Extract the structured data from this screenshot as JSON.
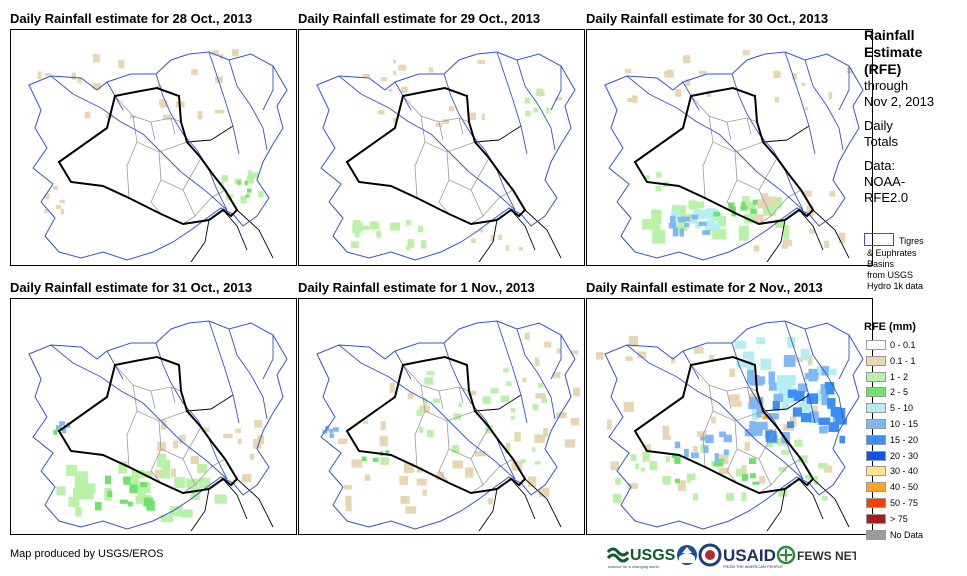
{
  "panels": [
    {
      "title": "Daily Rainfall estimate for 28 Oct., 2013"
    },
    {
      "title": "Daily Rainfall estimate for 29 Oct., 2013"
    },
    {
      "title": "Daily Rainfall estimate for 30 Oct., 2013"
    },
    {
      "title": "Daily Rainfall estimate for 31 Oct., 2013"
    },
    {
      "title": "Daily Rainfall estimate for 1 Nov., 2013"
    },
    {
      "title": "Daily Rainfall estimate for 2 Nov., 2013"
    }
  ],
  "side": {
    "title_line1": "Rainfall",
    "title_line2": "Estimate",
    "title_line3": "(RFE)",
    "through": "through",
    "date": "Nov 2, 2013",
    "daily": "Daily",
    "totals": "Totals",
    "data_label": "Data:",
    "source1": "NOAA-",
    "source2": "RFE2.0"
  },
  "basin_legend": {
    "line1": "Tigres",
    "line2": "& Euphrates",
    "line3": "Basins",
    "line4": "from USGS",
    "line5": "Hydro 1k data"
  },
  "legend": {
    "title": "RFE (mm)",
    "items": [
      {
        "label": "0 - 0.1",
        "color": "#ffffff"
      },
      {
        "label": "0.1 - 1",
        "color": "#e8d5b2"
      },
      {
        "label": "1 - 2",
        "color": "#b9f2a6"
      },
      {
        "label": "2 - 5",
        "color": "#6ee36a"
      },
      {
        "label": "5 - 10",
        "color": "#b4eef0"
      },
      {
        "label": "10 - 15",
        "color": "#7fb8f5"
      },
      {
        "label": "15 - 20",
        "color": "#3d8ef2"
      },
      {
        "label": "20 - 30",
        "color": "#1452e6"
      },
      {
        "label": "30 - 40",
        "color": "#ffe38a"
      },
      {
        "label": "40 - 50",
        "color": "#ffa526"
      },
      {
        "label": "50 - 75",
        "color": "#ff3c00"
      },
      {
        "label": "> 75",
        "color": "#a61c1c"
      },
      {
        "label": "No Data",
        "color": "#9c9c9c"
      }
    ]
  },
  "footer": {
    "credit": "Map produced by USGS/EROS"
  },
  "logos": {
    "usgs": "USGS",
    "usgs_tag": "science for a changing world",
    "usaid": "USAID",
    "usaid_tag": "FROM THE AMERICAN PEOPLE",
    "fews": "FEWS NET"
  }
}
